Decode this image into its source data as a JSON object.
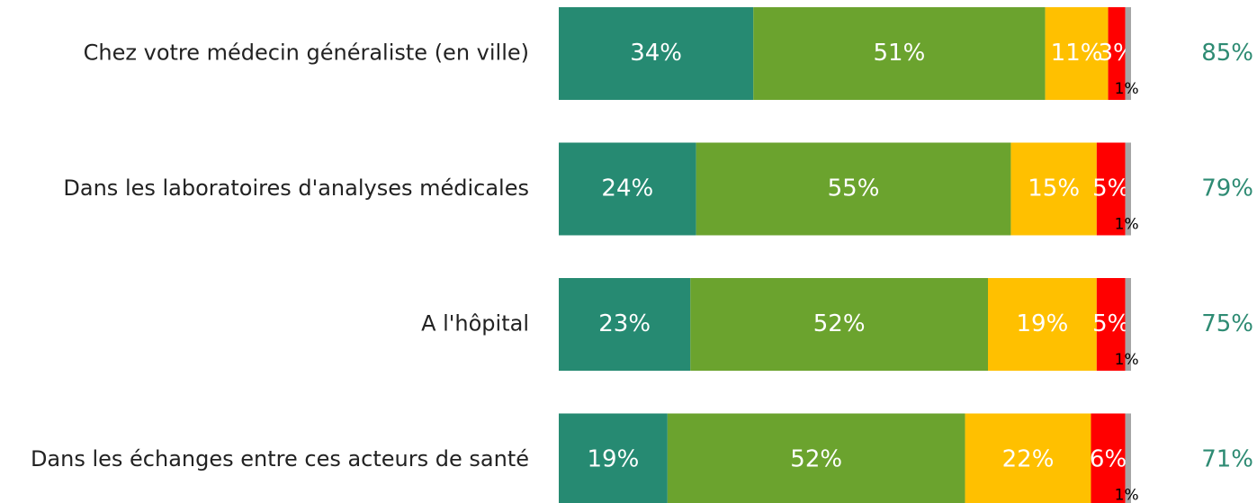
{
  "chart_data": {
    "type": "stacked-bar-horizontal",
    "categories": [
      "Chez votre médecin généraliste (en ville)",
      "Dans les laboratoires d'analyses médicales",
      "A l'hôpital",
      "Dans les échanges entre ces acteurs de santé"
    ],
    "xlim": [
      0,
      100
    ],
    "series": [
      {
        "color": "#268a72",
        "values": [
          34,
          24,
          23,
          19
        ],
        "value_labels": [
          "34%",
          "24%",
          "23%",
          "19%"
        ]
      },
      {
        "color": "#6ba32e",
        "values": [
          51,
          55,
          52,
          52
        ],
        "value_labels": [
          "51%",
          "55%",
          "52%",
          "52%"
        ]
      },
      {
        "color": "#ffc000",
        "values": [
          11,
          15,
          19,
          22
        ],
        "value_labels": [
          "11%",
          "15%",
          "19%",
          "22%"
        ]
      },
      {
        "color": "#ff0000",
        "values": [
          3,
          5,
          5,
          6
        ],
        "value_labels": [
          "3%",
          "5%",
          "5%",
          "6%"
        ]
      },
      {
        "color": "#a6a6a6",
        "values": [
          1,
          1,
          1,
          1
        ],
        "value_labels": [
          "1%",
          "1%",
          "1%",
          "1%"
        ]
      }
    ],
    "totals": {
      "color": "#2e8b73",
      "values": [
        85,
        79,
        75,
        71
      ],
      "value_labels": [
        "85%",
        "79%",
        "75%",
        "71%"
      ]
    }
  }
}
